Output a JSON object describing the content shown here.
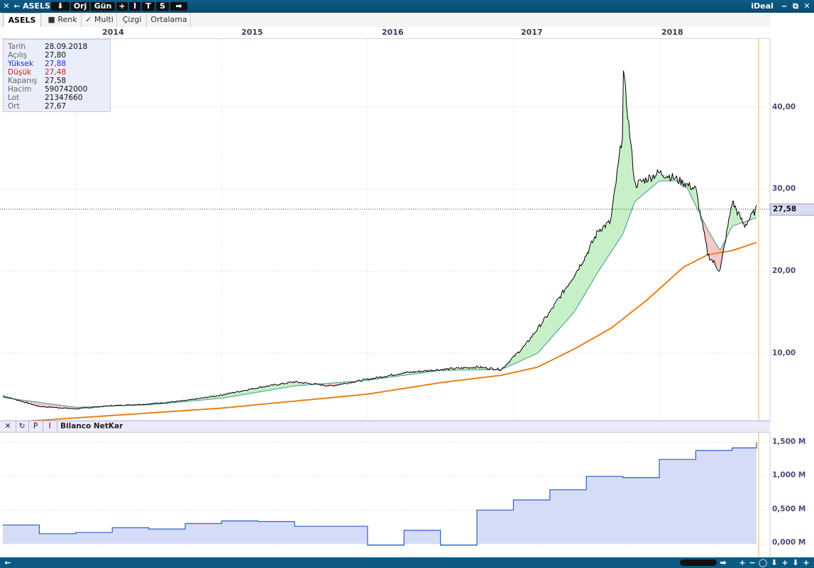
{
  "titlebar": {
    "close_glyph": "✕",
    "back_glyph": "←",
    "symbol": "ASELS",
    "down_glyph": "⬇",
    "orj": "Orj",
    "period": "Gün",
    "plus": "+",
    "i_btn": "I",
    "t_btn": "T",
    "s_btn": "S",
    "forward_glyph": "➡",
    "app_name": "iDeal",
    "minimize_glyph": "‒",
    "restore_glyph": "⧉",
    "close_win_glyph": "✕"
  },
  "tabs": {
    "symbol": "ASELS",
    "renk": "Renk",
    "renk_mark": "■",
    "multi": "Multi",
    "multi_mark": "✓",
    "cizgi": "Çizgi",
    "ortalama": "Ortalama"
  },
  "years": [
    "2014",
    "2015",
    "2016",
    "2017",
    "2018"
  ],
  "info": {
    "tarih_label": "Tarih",
    "tarih": "28.09.2018",
    "acilis_label": "Açılış",
    "acilis": "27,80",
    "yuksek_label": "Yüksek",
    "yuksek": "27,88",
    "dusuk_label": "Düşük",
    "dusuk": "27,48",
    "kapanis_label": "Kapanış",
    "kapanis": "27,58",
    "hacim_label": "Hacim",
    "hacim": "590742000",
    "lot_label": "Lot",
    "lot": "21347660",
    "ort_label": "Ort",
    "ort": "27,67"
  },
  "price_axis": [
    "40,00",
    "30,00",
    "20,00",
    "10,00"
  ],
  "last_price": "27,58",
  "lower_panel": {
    "close_glyph": "✕",
    "refresh_glyph": "↻",
    "p_btn": "P",
    "i_btn": "I",
    "title": "Bilanco NetKar",
    "axis": [
      "1,500 M",
      "1,000 M",
      "0,500 M",
      "0,000 M"
    ]
  },
  "bottombar": {
    "left_glyph": "←",
    "right_glyph": "➡",
    "plus": "+",
    "minus": "−",
    "circle": "◯",
    "down": "⬇",
    "plus2": "+",
    "down2": "⬇",
    "plus3": "+"
  },
  "colors": {
    "titlebar": "#0a4a6e",
    "price_line": "#000000",
    "sma_long": "#e8801a",
    "fill_up": "#c8f0c8",
    "fill_down": "#f4c8c8",
    "netkar_fill": "#d5dcf8",
    "netkar_line": "#2d5fc4"
  },
  "chart_data": [
    {
      "type": "line",
      "series": [
        {
          "x": [
            "2013-07",
            "2013-10",
            "2014-01",
            "2014-04",
            "2014-07",
            "2014-10",
            "2015-01",
            "2015-04",
            "2015-07",
            "2015-10",
            "2016-01",
            "2016-04",
            "2016-07",
            "2016-10",
            "2016-12",
            "2017-02",
            "2017-04",
            "2017-06",
            "2017-07",
            "2017-08",
            "2017-09",
            "2017-10",
            "2017-10",
            "2017-11",
            "2018-01",
            "2018-02",
            "2018-04",
            "2018-05",
            "2018-06",
            "2018-07",
            "2018-08",
            "2018-09"
          ],
          "values": [
            4.8,
            3.5,
            3.2,
            3.6,
            3.8,
            4.2,
            4.9,
            5.8,
            6.5,
            6.0,
            6.8,
            7.6,
            8.0,
            8.3,
            8.0,
            11.0,
            15.0,
            19.5,
            22.0,
            25.0,
            26.0,
            37.0,
            45.0,
            30.5,
            32.0,
            31.5,
            30.0,
            22.0,
            20.0,
            28.5,
            25.5,
            27.58
          ]
        },
        {
          "x": [
            "2013-07",
            "2014-01",
            "2014-07",
            "2015-01",
            "2015-07",
            "2016-01",
            "2016-07",
            "2016-12",
            "2017-03",
            "2017-06",
            "2017-08",
            "2017-10",
            "2017-11",
            "2018-01",
            "2018-03",
            "2018-05",
            "2018-06",
            "2018-07",
            "2018-09"
          ],
          "values": [
            4.6,
            3.4,
            3.7,
            4.5,
            6.0,
            6.7,
            7.9,
            8.0,
            10.0,
            15.0,
            20.0,
            24.5,
            28.5,
            31.0,
            31.0,
            25.0,
            22.5,
            25.5,
            26.5
          ]
        },
        {
          "x": [
            "2013-07",
            "2014-01",
            "2015-01",
            "2016-01",
            "2016-07",
            "2016-12",
            "2017-03",
            "2017-06",
            "2017-09",
            "2017-12",
            "2018-03",
            "2018-05",
            "2018-07",
            "2018-09"
          ],
          "values": [
            1.5,
            2.1,
            3.3,
            5.0,
            6.4,
            7.3,
            8.3,
            10.5,
            13.0,
            16.5,
            20.5,
            22.0,
            22.5,
            23.5
          ]
        }
      ],
      "ylim": [
        0,
        50
      ],
      "grid": true
    },
    {
      "type": "area",
      "x": [
        "2013-07",
        "2013-10",
        "2014-01",
        "2014-04",
        "2014-07",
        "2014-10",
        "2015-01",
        "2015-04",
        "2015-07",
        "2015-10",
        "2016-01",
        "2016-04",
        "2016-07",
        "2016-10",
        "2017-01",
        "2017-04",
        "2017-07",
        "2017-10",
        "2018-01",
        "2018-04",
        "2018-07",
        "2018-09"
      ],
      "values": [
        0.28,
        0.15,
        0.17,
        0.24,
        0.22,
        0.3,
        0.34,
        0.33,
        0.26,
        0.26,
        -0.02,
        0.2,
        -0.02,
        0.5,
        0.65,
        0.8,
        1.0,
        0.98,
        1.25,
        1.38,
        1.42,
        1.5
      ],
      "ylabel": "",
      "ylim": [
        0,
        1.6
      ],
      "grid": true
    }
  ]
}
